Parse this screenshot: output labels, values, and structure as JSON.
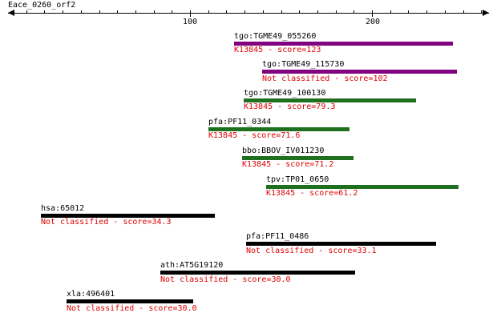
{
  "axis": {
    "query_name": "Eace_0260_orf2",
    "ticks": [
      "100",
      "200"
    ]
  },
  "colors": {
    "black": "#000000",
    "purple": "#800080",
    "green": "#1e6f1e",
    "score_text": "#e00000"
  },
  "hits": [
    {
      "name": "tgo:TGME49_055260",
      "annotation": "K13845 - score=123",
      "color": "purple"
    },
    {
      "name": "tgo:TGME49_115730",
      "annotation": "Not classified - score=102",
      "color": "purple"
    },
    {
      "name": "tgo:TGME49_100130",
      "annotation": "K13845 - score=79.3",
      "color": "green"
    },
    {
      "name": "pfa:PF11_0344",
      "annotation": "K13845 - score=71.6",
      "color": "green"
    },
    {
      "name": "bbo:BBOV_IV011230",
      "annotation": "K13845 - score=71.2",
      "color": "green"
    },
    {
      "name": "tpv:TP01_0650",
      "annotation": "K13845 - score=61.2",
      "color": "green"
    },
    {
      "name": "hsa:65012",
      "annotation": "Not classified - score=34.3",
      "color": "black"
    },
    {
      "name": "pfa:PF11_0486",
      "annotation": "Not classified - score=33.1",
      "color": "black"
    },
    {
      "name": "ath:AT5G19120",
      "annotation": "Not classified - score=30.0",
      "color": "black"
    },
    {
      "name": "xla:496401",
      "annotation": "Not classified - score=30.0",
      "color": "black"
    }
  ]
}
